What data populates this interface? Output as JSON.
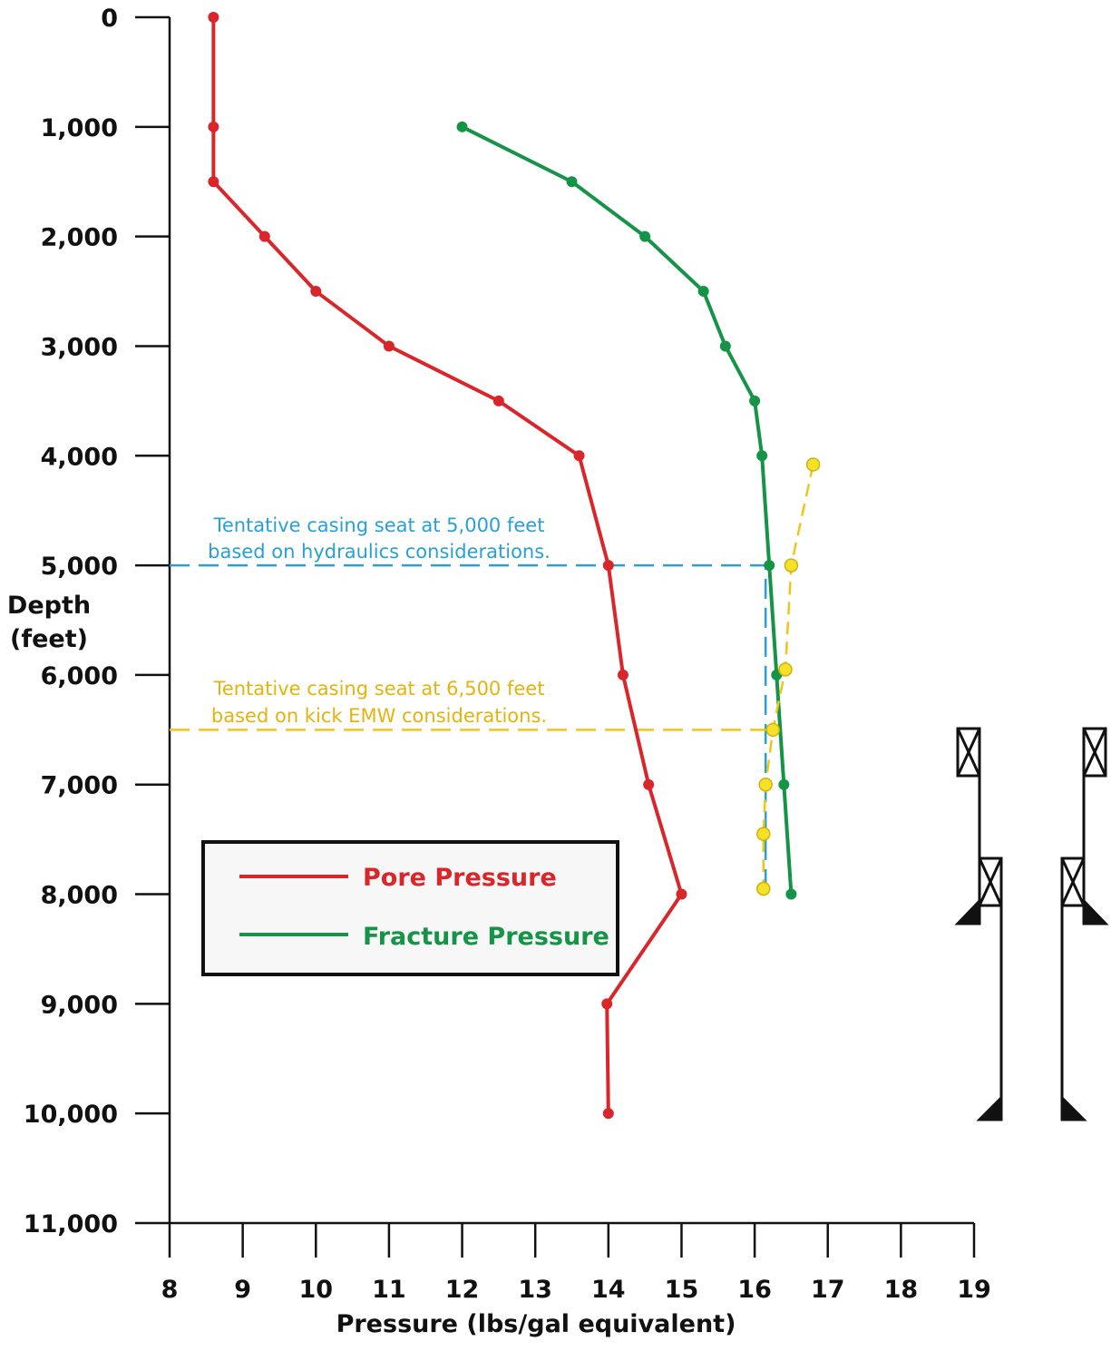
{
  "chart_data": {
    "type": "line",
    "title": "",
    "xlabel": "Pressure (lbs/gal equivalent)",
    "ylabel": [
      "Depth",
      "(feet)"
    ],
    "xlim": [
      8,
      19
    ],
    "ylim": [
      0,
      11000
    ],
    "y_inverted": true,
    "x_ticks": [
      8,
      9,
      10,
      11,
      12,
      13,
      14,
      15,
      16,
      17,
      18,
      19
    ],
    "y_ticks": [
      {
        "value": 0,
        "label": "0"
      },
      {
        "value": 1000,
        "label": "1,000"
      },
      {
        "value": 2000,
        "label": "2,000"
      },
      {
        "value": 3000,
        "label": "3,000"
      },
      {
        "value": 4000,
        "label": "4,000"
      },
      {
        "value": 5000,
        "label": "5,000"
      },
      {
        "value": 6000,
        "label": "6,000"
      },
      {
        "value": 7000,
        "label": "7,000"
      },
      {
        "value": 8000,
        "label": "8,000"
      },
      {
        "value": 9000,
        "label": "9,000"
      },
      {
        "value": 10000,
        "label": "10,000"
      },
      {
        "value": 11000,
        "label": "11,000"
      }
    ],
    "grid": false,
    "legend_position": "lower-left",
    "series": [
      {
        "name": "Pore Pressure",
        "color": "#d9262b",
        "style": "solid",
        "points": [
          {
            "x": 8.6,
            "y": 0
          },
          {
            "x": 8.6,
            "y": 1000
          },
          {
            "x": 8.6,
            "y": 1500
          },
          {
            "x": 9.3,
            "y": 2000
          },
          {
            "x": 10.0,
            "y": 2500
          },
          {
            "x": 11.0,
            "y": 3000
          },
          {
            "x": 12.5,
            "y": 3500
          },
          {
            "x": 13.6,
            "y": 4000
          },
          {
            "x": 14.0,
            "y": 5000
          },
          {
            "x": 14.2,
            "y": 6000
          },
          {
            "x": 14.55,
            "y": 7000
          },
          {
            "x": 15.0,
            "y": 8000
          },
          {
            "x": 13.98,
            "y": 9000
          },
          {
            "x": 14.0,
            "y": 10000
          }
        ]
      },
      {
        "name": "Fracture Pressure",
        "color": "#159447",
        "style": "solid",
        "points": [
          {
            "x": 12.0,
            "y": 1000
          },
          {
            "x": 13.5,
            "y": 1500
          },
          {
            "x": 14.5,
            "y": 2000
          },
          {
            "x": 15.3,
            "y": 2500
          },
          {
            "x": 15.6,
            "y": 3000
          },
          {
            "x": 16.0,
            "y": 3500
          },
          {
            "x": 16.1,
            "y": 4000
          },
          {
            "x": 16.2,
            "y": 5000
          },
          {
            "x": 16.3,
            "y": 6000
          },
          {
            "x": 16.4,
            "y": 7000
          },
          {
            "x": 16.5,
            "y": 8000
          }
        ]
      },
      {
        "color": "#f0c419",
        "style": "dashed",
        "points": [
          {
            "x": 16.8,
            "y": 4080
          },
          {
            "x": 16.5,
            "y": 5000
          },
          {
            "x": 16.42,
            "y": 5950
          },
          {
            "x": 16.25,
            "y": 6500
          },
          {
            "x": 16.15,
            "y": 7000
          },
          {
            "x": 16.12,
            "y": 7450
          },
          {
            "x": 16.12,
            "y": 7950
          }
        ]
      }
    ],
    "reference_lines": [
      {
        "color": "#2a9fd6",
        "points": [
          {
            "x": 8,
            "y": 5000
          },
          {
            "x": 16.15,
            "y": 5000
          },
          {
            "x": 16.15,
            "y": 8000
          }
        ]
      },
      {
        "color": "#f0c419",
        "points": [
          {
            "x": 8,
            "y": 6500
          },
          {
            "x": 16.25,
            "y": 6500
          }
        ]
      }
    ],
    "annotations": [
      {
        "lines": [
          "Tentative casing seat at 5,000 feet",
          "based on hydraulics considerations."
        ],
        "color": "#2a9fd6"
      },
      {
        "lines": [
          "Tentative casing seat at 6,500 feet",
          "based on kick EMW considerations."
        ],
        "color": "#f0c419"
      }
    ]
  }
}
